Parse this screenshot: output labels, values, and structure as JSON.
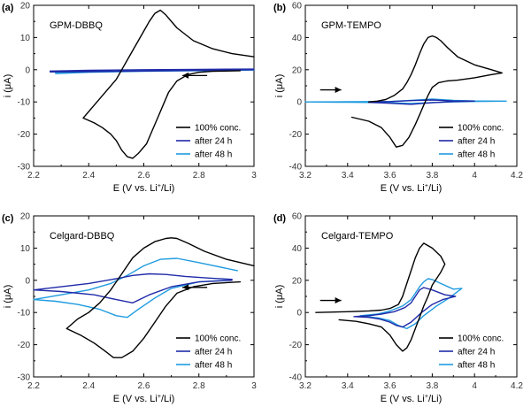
{
  "colors": {
    "conc": "#000000",
    "h24": "#1f2aa8",
    "h48": "#1f9bdf"
  },
  "chart_data": [
    {
      "type": "line",
      "letter": "(a)",
      "title": "GPM-DBBQ",
      "xlabel_main": "E (V vs. Li",
      "xlabel_sup": "+",
      "xlabel_end": "/Li)",
      "ylabel": "i (μA)",
      "xlim": [
        2.2,
        3.0
      ],
      "ylim": [
        -30,
        20
      ],
      "xticks": [
        "2.2",
        "2.4",
        "2.6",
        "2.8",
        "3"
      ],
      "xtick_values": [
        2.2,
        2.4,
        2.6,
        2.8,
        3.0
      ],
      "yticks": [
        "-30",
        "-20",
        "-10",
        "0",
        "10",
        "20"
      ],
      "ytick_values": [
        -30,
        -20,
        -10,
        0,
        10,
        20
      ],
      "legend": [
        "100% conc.",
        "after 24 h",
        "after 48 h"
      ],
      "arrow": {
        "direction": "left",
        "x": [
          2.83,
          2.74
        ],
        "y": -1.8
      },
      "series": [
        {
          "name": "100% conc.",
          "color_key": "conc",
          "x": [
            2.95,
            2.85,
            2.8,
            2.76,
            2.72,
            2.69,
            2.67,
            2.65,
            2.63,
            2.61,
            2.58,
            2.56,
            2.54,
            2.52,
            2.5,
            2.48,
            2.45,
            2.42,
            2.38,
            2.42,
            2.46,
            2.5,
            2.52,
            2.54,
            2.56,
            2.58,
            2.6,
            2.62,
            2.64,
            2.66,
            2.68,
            2.72,
            2.78,
            2.85,
            2.92,
            3.0
          ],
          "y": [
            -0.3,
            -0.5,
            -0.8,
            -1.5,
            -3.5,
            -7,
            -11,
            -15,
            -19,
            -23,
            -26,
            -27.5,
            -27,
            -25,
            -22,
            -20,
            -18,
            -16.5,
            -15,
            -11,
            -7,
            -3,
            0,
            3,
            6,
            9,
            12,
            15,
            17.5,
            18.5,
            17,
            13,
            9,
            6.5,
            5,
            4
          ]
        },
        {
          "name": "after 24 h",
          "color_key": "h24",
          "x": [
            3.0,
            2.8,
            2.6,
            2.4,
            2.26,
            2.26,
            2.4,
            2.6,
            2.8,
            3.0
          ],
          "y": [
            0.0,
            -0.2,
            -0.4,
            -0.6,
            -0.7,
            -0.4,
            -0.2,
            0.0,
            0.1,
            0.2
          ]
        },
        {
          "name": "after 48 h",
          "color_key": "h48",
          "x": [
            3.0,
            2.8,
            2.6,
            2.4,
            2.28,
            2.28,
            2.4,
            2.6,
            2.8,
            3.0
          ],
          "y": [
            -0.1,
            -0.3,
            -0.5,
            -0.8,
            -1.2,
            -0.8,
            -0.5,
            -0.3,
            -0.1,
            0.0
          ]
        }
      ]
    },
    {
      "type": "line",
      "letter": "(b)",
      "title": "GPM-TEMPO",
      "xlabel_main": "E (V vs. Li",
      "xlabel_sup": "+",
      "xlabel_end": "/Li)",
      "ylabel": "i (μA)",
      "xlim": [
        3.2,
        4.2
      ],
      "ylim": [
        -40,
        60
      ],
      "xticks": [
        "3.2",
        "3.4",
        "3.6",
        "3.8",
        "4",
        "4.2"
      ],
      "xtick_values": [
        3.2,
        3.4,
        3.6,
        3.8,
        4.0,
        4.2
      ],
      "yticks": [
        "-40",
        "-20",
        "0",
        "20",
        "40",
        "60"
      ],
      "ytick_values": [
        -40,
        -20,
        0,
        20,
        40,
        60
      ],
      "legend": [
        "100% conc.",
        "after 24 h",
        "after 48 h"
      ],
      "arrow": {
        "direction": "right",
        "x": [
          3.27,
          3.37
        ],
        "y": 7.5
      },
      "series": [
        {
          "name": "100% conc.",
          "color_key": "conc",
          "x": [
            3.42,
            3.5,
            3.56,
            3.6,
            3.63,
            3.66,
            3.69,
            3.72,
            3.74,
            3.76,
            3.78,
            3.8,
            3.83,
            3.87,
            3.92,
            4.0,
            4.08,
            4.13,
            4.08,
            4.0,
            3.92,
            3.87,
            3.84,
            3.82,
            3.8,
            3.78,
            3.76,
            3.74,
            3.72,
            3.7,
            3.68,
            3.66,
            3.62,
            3.58,
            3.54,
            3.5
          ],
          "y": [
            -9.5,
            -12,
            -16,
            -22,
            -28,
            -27,
            -22,
            -14,
            -8,
            -2,
            4,
            9,
            12,
            13,
            13.5,
            15,
            17,
            18,
            20,
            23,
            28,
            34,
            38,
            40,
            41,
            40,
            36,
            30,
            23,
            17,
            12,
            8,
            4,
            1.5,
            0.5,
            0
          ]
        },
        {
          "name": "after 24 h",
          "color_key": "h24",
          "x": [
            3.5,
            3.6,
            3.7,
            3.8,
            3.9,
            4.0,
            3.9,
            3.8,
            3.7,
            3.6,
            3.5
          ],
          "y": [
            -0.3,
            -0.8,
            -1.5,
            -0.5,
            0.2,
            0.5,
            0.6,
            1.2,
            0.8,
            0.2,
            0.0
          ]
        },
        {
          "name": "after 48 h",
          "color_key": "h48",
          "x": [
            3.2,
            3.4,
            3.6,
            3.7,
            3.8,
            3.9,
            4.0,
            4.15,
            4.0,
            3.9,
            3.8,
            3.7,
            3.6,
            3.4,
            3.2
          ],
          "y": [
            0.0,
            -0.2,
            -0.5,
            -1.0,
            -0.4,
            0.0,
            0.3,
            0.5,
            0.6,
            1.0,
            1.8,
            1.0,
            0.3,
            0.1,
            0.0
          ]
        }
      ]
    },
    {
      "type": "line",
      "letter": "(c)",
      "title": "Celgard-DBBQ",
      "xlabel_main": "E (V vs. Li",
      "xlabel_sup": "+",
      "xlabel_end": "/Li)",
      "ylabel": "i (μA)",
      "xlim": [
        2.2,
        3.0
      ],
      "ylim": [
        -30,
        20
      ],
      "xticks": [
        "2.2",
        "2.4",
        "2.6",
        "2.8",
        "3"
      ],
      "xtick_values": [
        2.2,
        2.4,
        2.6,
        2.8,
        3.0
      ],
      "yticks": [
        "-30",
        "-20",
        "-10",
        "0",
        "10",
        "20"
      ],
      "ytick_values": [
        -30,
        -20,
        -10,
        0,
        10,
        20
      ],
      "legend": [
        "100% conc.",
        "after 24 h",
        "after 48 h"
      ],
      "arrow": {
        "direction": "left",
        "x": [
          2.83,
          2.74
        ],
        "y": -2.2
      },
      "series": [
        {
          "name": "100% conc.",
          "color_key": "conc",
          "x": [
            2.95,
            2.85,
            2.78,
            2.72,
            2.68,
            2.64,
            2.6,
            2.56,
            2.52,
            2.49,
            2.46,
            2.42,
            2.37,
            2.32,
            2.36,
            2.4,
            2.44,
            2.48,
            2.52,
            2.56,
            2.6,
            2.64,
            2.68,
            2.7,
            2.72,
            2.76,
            2.82,
            2.9,
            3.0
          ],
          "y": [
            -0.5,
            -1,
            -2,
            -4,
            -8,
            -13,
            -18,
            -22,
            -24,
            -24,
            -22,
            -19.5,
            -17,
            -15,
            -12,
            -10,
            -7,
            -3,
            2,
            7,
            10,
            12,
            13,
            13.2,
            13,
            11.5,
            9,
            6.5,
            4.5
          ]
        },
        {
          "name": "after 24 h",
          "color_key": "h24",
          "x": [
            2.92,
            2.8,
            2.7,
            2.62,
            2.56,
            2.5,
            2.42,
            2.3,
            2.2,
            2.3,
            2.4,
            2.5,
            2.56,
            2.62,
            2.68,
            2.75,
            2.85,
            2.92
          ],
          "y": [
            0.0,
            -0.5,
            -2,
            -4.5,
            -7,
            -6,
            -4.5,
            -3.5,
            -3.0,
            -2.0,
            -1.0,
            0.5,
            1.5,
            2.0,
            1.8,
            1.2,
            0.6,
            0.3
          ]
        },
        {
          "name": "after 48 h",
          "color_key": "h48",
          "x": [
            2.9,
            2.8,
            2.7,
            2.64,
            2.58,
            2.54,
            2.5,
            2.44,
            2.36,
            2.28,
            2.2,
            2.3,
            2.4,
            2.48,
            2.54,
            2.6,
            2.66,
            2.72,
            2.8,
            2.94
          ],
          "y": [
            0.0,
            -0.5,
            -2.5,
            -5.5,
            -9,
            -11.5,
            -11,
            -9,
            -7.5,
            -6.5,
            -6.0,
            -4.5,
            -3.0,
            -1.0,
            1.5,
            4.5,
            6.5,
            6.8,
            5.5,
            3.0
          ]
        }
      ]
    },
    {
      "type": "line",
      "letter": "(d)",
      "title": "Celgard-TEMPO",
      "xlabel_main": "E (V vs. Li",
      "xlabel_sup": "+",
      "xlabel_end": "/Li)",
      "ylabel": "i (μA)",
      "xlim": [
        3.2,
        4.2
      ],
      "ylim": [
        -40,
        60
      ],
      "xticks": [
        "3.2",
        "3.4",
        "3.6",
        "3.8",
        "4",
        "4.2"
      ],
      "xtick_values": [
        3.2,
        3.4,
        3.6,
        3.8,
        4.0,
        4.2
      ],
      "yticks": [
        "-40",
        "-20",
        "0",
        "20",
        "40",
        "60"
      ],
      "ytick_values": [
        -40,
        -20,
        0,
        20,
        40,
        60
      ],
      "legend": [
        "100% conc.",
        "after 24 h",
        "after 48 h"
      ],
      "arrow": {
        "direction": "right",
        "x": [
          3.27,
          3.37
        ],
        "y": 7.5
      },
      "series": [
        {
          "name": "100% conc.",
          "color_key": "conc",
          "x": [
            3.25,
            3.4,
            3.5,
            3.56,
            3.6,
            3.64,
            3.66,
            3.68,
            3.7,
            3.72,
            3.74,
            3.76,
            3.8,
            3.84,
            3.86,
            3.84,
            3.8,
            3.78,
            3.76,
            3.74,
            3.72,
            3.7,
            3.68,
            3.66,
            3.63,
            3.6,
            3.56,
            3.5,
            3.44,
            3.36
          ],
          "y": [
            0.0,
            0.5,
            1.0,
            1.5,
            2.5,
            5,
            10,
            18,
            26,
            34,
            40,
            43,
            40,
            35,
            30,
            25,
            17,
            10,
            4,
            -3,
            -10,
            -17,
            -22,
            -24,
            -20,
            -14,
            -9,
            -7,
            -5.5,
            -4.5
          ]
        },
        {
          "name": "after 24 h",
          "color_key": "h24",
          "x": [
            3.43,
            3.5,
            3.55,
            3.6,
            3.63,
            3.66,
            3.7,
            3.75,
            3.8,
            3.85,
            3.91,
            3.86,
            3.8,
            3.76,
            3.74,
            3.72,
            3.7,
            3.67,
            3.62,
            3.56,
            3.5,
            3.43
          ],
          "y": [
            -2.5,
            -3.0,
            -4.0,
            -6.0,
            -8.0,
            -9.0,
            -6.0,
            0.0,
            5.0,
            8.0,
            10.0,
            11.0,
            14.0,
            15.5,
            14.0,
            10.0,
            6.0,
            3.0,
            0.5,
            -1.0,
            -2.0,
            -2.5
          ]
        },
        {
          "name": "after 48 h",
          "color_key": "h48",
          "x": [
            3.46,
            3.55,
            3.6,
            3.64,
            3.68,
            3.72,
            3.76,
            3.82,
            3.88,
            3.94,
            3.9,
            3.84,
            3.8,
            3.78,
            3.76,
            3.74,
            3.72,
            3.7,
            3.66,
            3.6,
            3.54,
            3.46
          ],
          "y": [
            -2.0,
            -3.5,
            -5.0,
            -8.0,
            -10.0,
            -7.0,
            -2.0,
            4.0,
            9.0,
            15.0,
            14.5,
            18.0,
            20.5,
            21.0,
            19.0,
            16.0,
            12.0,
            8.0,
            4.0,
            1.0,
            -1.0,
            -2.0
          ]
        }
      ]
    }
  ]
}
